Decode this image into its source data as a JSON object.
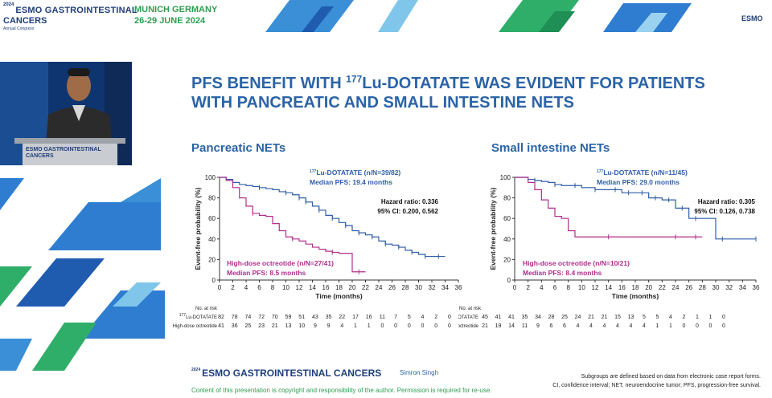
{
  "header": {
    "year": "2024",
    "brand_line1": "ESMO GASTROINTESTINAL",
    "brand_line2": "CANCERS",
    "brand_line3": "Annual Congress",
    "city": "MUNICH GERMANY",
    "dates": "26-29 JUNE 2024",
    "logo": "ESMO"
  },
  "speaker": {
    "podium_line1": "ESMO GASTROINTESTINAL",
    "podium_line2": "CANCERS"
  },
  "slide": {
    "title_pre": "PFS BENEFIT WITH ",
    "title_sup": "177",
    "title_post": "Lu-DOTATATE WAS EVIDENT FOR PATIENTS",
    "title_line2": "WITH PANCREATIC AND SMALL INTESTINE NETS"
  },
  "chart_data": [
    {
      "type": "line",
      "subtitle": "Pancreatic NETs",
      "xlabel": "Time (months)",
      "ylabel": "Event-free probability (%)",
      "xlim": [
        0,
        36
      ],
      "ylim": [
        0,
        100
      ],
      "xticks": [
        0,
        2,
        4,
        6,
        8,
        10,
        12,
        14,
        16,
        18,
        20,
        22,
        24,
        26,
        28,
        30,
        32,
        34,
        36
      ],
      "yticks": [
        0,
        20,
        40,
        60,
        80,
        100
      ],
      "series": [
        {
          "name_sup": "177",
          "name": "Lu-DOTATATE (n/N=39/82)",
          "median_label": "Median PFS: 19.4 months",
          "color": "#2f5ea8",
          "x": [
            0,
            1,
            2,
            3,
            4,
            5,
            6,
            7,
            8,
            9,
            10,
            11,
            12,
            13,
            14,
            15,
            16,
            17,
            18,
            19,
            20,
            21,
            22,
            23,
            24,
            25,
            26,
            27,
            28,
            29,
            30,
            31,
            32,
            33,
            34
          ],
          "y": [
            100,
            98,
            95,
            93,
            92,
            91,
            90,
            89,
            88,
            86,
            85,
            83,
            80,
            76,
            72,
            68,
            63,
            60,
            56,
            53,
            48,
            46,
            44,
            42,
            38,
            35,
            34,
            32,
            29,
            27,
            25,
            23,
            23,
            23,
            23
          ],
          "censor_x": [
            6,
            10,
            12,
            13,
            15,
            17,
            19,
            21,
            23,
            25,
            27,
            29,
            31,
            33
          ]
        },
        {
          "name": "High-dose octreotide (n/N=27/41)",
          "median_label": "Median PFS: 8.5 months",
          "color": "#b02e8c",
          "x": [
            0,
            1,
            2,
            3,
            4,
            5,
            6,
            7,
            8,
            9,
            10,
            11,
            12,
            13,
            14,
            15,
            16,
            17,
            18,
            19,
            20,
            21,
            22
          ],
          "y": [
            100,
            97,
            90,
            80,
            72,
            65,
            63,
            62,
            55,
            48,
            42,
            40,
            38,
            35,
            32,
            30,
            28,
            27,
            26,
            26,
            8,
            8,
            8
          ],
          "censor_x": [
            5,
            11,
            17,
            21
          ]
        }
      ],
      "hazard_ratio": "Hazard ratio: 0.336",
      "ci": "95% CI: 0.200, 0.562",
      "risk_table": {
        "header": "No. at risk",
        "rows": [
          {
            "label_sup": "177",
            "label": "Lu-DOTATATE",
            "values": [
              "82",
              "78",
              "74",
              "72",
              "70",
              "59",
              "51",
              "43",
              "35",
              "22",
              "17",
              "16",
              "11",
              "7",
              "5",
              "4",
              "2",
              "0"
            ]
          },
          {
            "label": "High-dose octreotide",
            "values": [
              "41",
              "36",
              "25",
              "23",
              "21",
              "13",
              "10",
              "9",
              "9",
              "4",
              "1",
              "1",
              "0",
              "0",
              "0",
              "0",
              "0",
              "0"
            ]
          }
        ]
      }
    },
    {
      "type": "line",
      "subtitle": "Small intestine NETs",
      "xlabel": "Time (months)",
      "ylabel": "Event-free probability (%)",
      "xlim": [
        0,
        36
      ],
      "ylim": [
        0,
        100
      ],
      "xticks": [
        0,
        2,
        4,
        6,
        8,
        10,
        12,
        14,
        16,
        18,
        20,
        22,
        24,
        26,
        28,
        30,
        32,
        34,
        36
      ],
      "yticks": [
        0,
        20,
        40,
        60,
        80,
        100
      ],
      "series": [
        {
          "name_sup": "177",
          "name": "Lu-DOTATATE (n/N=11/45)",
          "median_label": "Median PFS: 29.0 months",
          "color": "#2f5ea8",
          "x": [
            0,
            2,
            3,
            4,
            5,
            6,
            7,
            9,
            10,
            12,
            14,
            16,
            18,
            20,
            22,
            24,
            26,
            28,
            29,
            30,
            33,
            36
          ],
          "y": [
            100,
            98,
            97,
            96,
            95,
            93,
            92,
            92,
            90,
            88,
            88,
            85,
            85,
            80,
            78,
            70,
            60,
            60,
            60,
            40,
            40,
            40
          ],
          "censor_x": [
            3,
            6,
            9,
            12,
            15,
            17,
            19,
            21,
            23,
            25,
            27,
            31,
            36
          ]
        },
        {
          "name": "High-dose octreotide (n/N=10/21)",
          "median_label": "Median PFS: 8.4 months",
          "color": "#b02e8c",
          "x": [
            0,
            2,
            3,
            4,
            5,
            6,
            7,
            8,
            9,
            10,
            12,
            14,
            16,
            18,
            20,
            22,
            24,
            26,
            28
          ],
          "y": [
            100,
            95,
            88,
            78,
            70,
            62,
            60,
            48,
            42,
            42,
            42,
            42,
            42,
            42,
            42,
            42,
            42,
            42,
            42
          ],
          "censor_x": [
            14,
            24,
            27
          ]
        }
      ],
      "hazard_ratio": "Hazard ratio: 0.305",
      "ci": "95% CI: 0.126, 0.738",
      "risk_table": {
        "header": "No. at risk",
        "rows": [
          {
            "label_sup": "177",
            "label": "Lu-DOTATATE",
            "values": [
              "45",
              "41",
              "41",
              "35",
              "34",
              "28",
              "25",
              "24",
              "21",
              "21",
              "15",
              "13",
              "5",
              "5",
              "4",
              "2",
              "1",
              "1",
              "0"
            ]
          },
          {
            "label": "High-dose octreotide",
            "values": [
              "21",
              "19",
              "14",
              "11",
              "9",
              "6",
              "6",
              "4",
              "4",
              "4",
              "4",
              "4",
              "4",
              "1",
              "1",
              "0",
              "0",
              "0",
              "0"
            ]
          }
        ]
      }
    }
  ],
  "footer": {
    "year": "2024",
    "brand": "ESMO GASTROINTESTINAL CANCERS",
    "presenter": "Simron Singh",
    "copyright": "Content of this presentation is copyright and responsibility of the author. Permission is required for re-use.",
    "note1": "Subgroups are defined based on data from electronic case report forms.",
    "note2": "CI, confidence interval; NET, neuroendocrine tumor; PFS, progression-free survival."
  },
  "colors": {
    "blue": "#2b63a6",
    "green": "#2d9e4f",
    "navy": "#1f3e7a",
    "magenta": "#b02e8c"
  }
}
